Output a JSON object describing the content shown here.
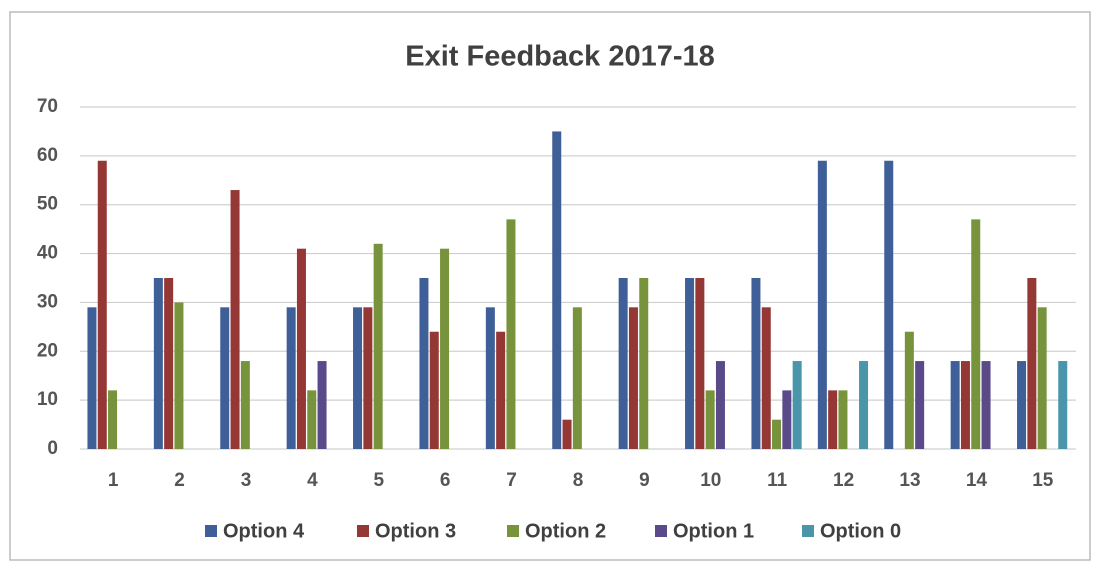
{
  "chart_data": {
    "type": "bar",
    "title": "Exit Feedback 2017-18",
    "categories": [
      "1",
      "2",
      "3",
      "4",
      "5",
      "6",
      "7",
      "8",
      "9",
      "10",
      "11",
      "12",
      "13",
      "14",
      "15"
    ],
    "series": [
      {
        "name": "Option 4",
        "color": "#3e5f97",
        "values": [
          29,
          35,
          29,
          29,
          29,
          35,
          29,
          65,
          35,
          35,
          35,
          59,
          59,
          18,
          18
        ]
      },
      {
        "name": "Option 3",
        "color": "#953735",
        "values": [
          59,
          35,
          53,
          41,
          29,
          24,
          24,
          6,
          29,
          35,
          29,
          12,
          0,
          18,
          35
        ]
      },
      {
        "name": "Option 2",
        "color": "#77933c",
        "values": [
          12,
          30,
          18,
          12,
          42,
          41,
          47,
          29,
          35,
          12,
          6,
          12,
          24,
          47,
          29
        ]
      },
      {
        "name": "Option 1",
        "color": "#5a4a8a",
        "values": [
          0,
          0,
          0,
          18,
          0,
          0,
          0,
          0,
          0,
          18,
          12,
          0,
          18,
          18,
          0
        ]
      },
      {
        "name": "Option 0",
        "color": "#4a95aa",
        "values": [
          0,
          0,
          0,
          0,
          0,
          0,
          0,
          0,
          0,
          0,
          18,
          18,
          0,
          0,
          18
        ]
      }
    ],
    "ylim": [
      0,
      70
    ],
    "yticks": [
      0,
      10,
      20,
      30,
      40,
      50,
      60,
      70
    ],
    "grid": true,
    "legend": "bottom"
  }
}
